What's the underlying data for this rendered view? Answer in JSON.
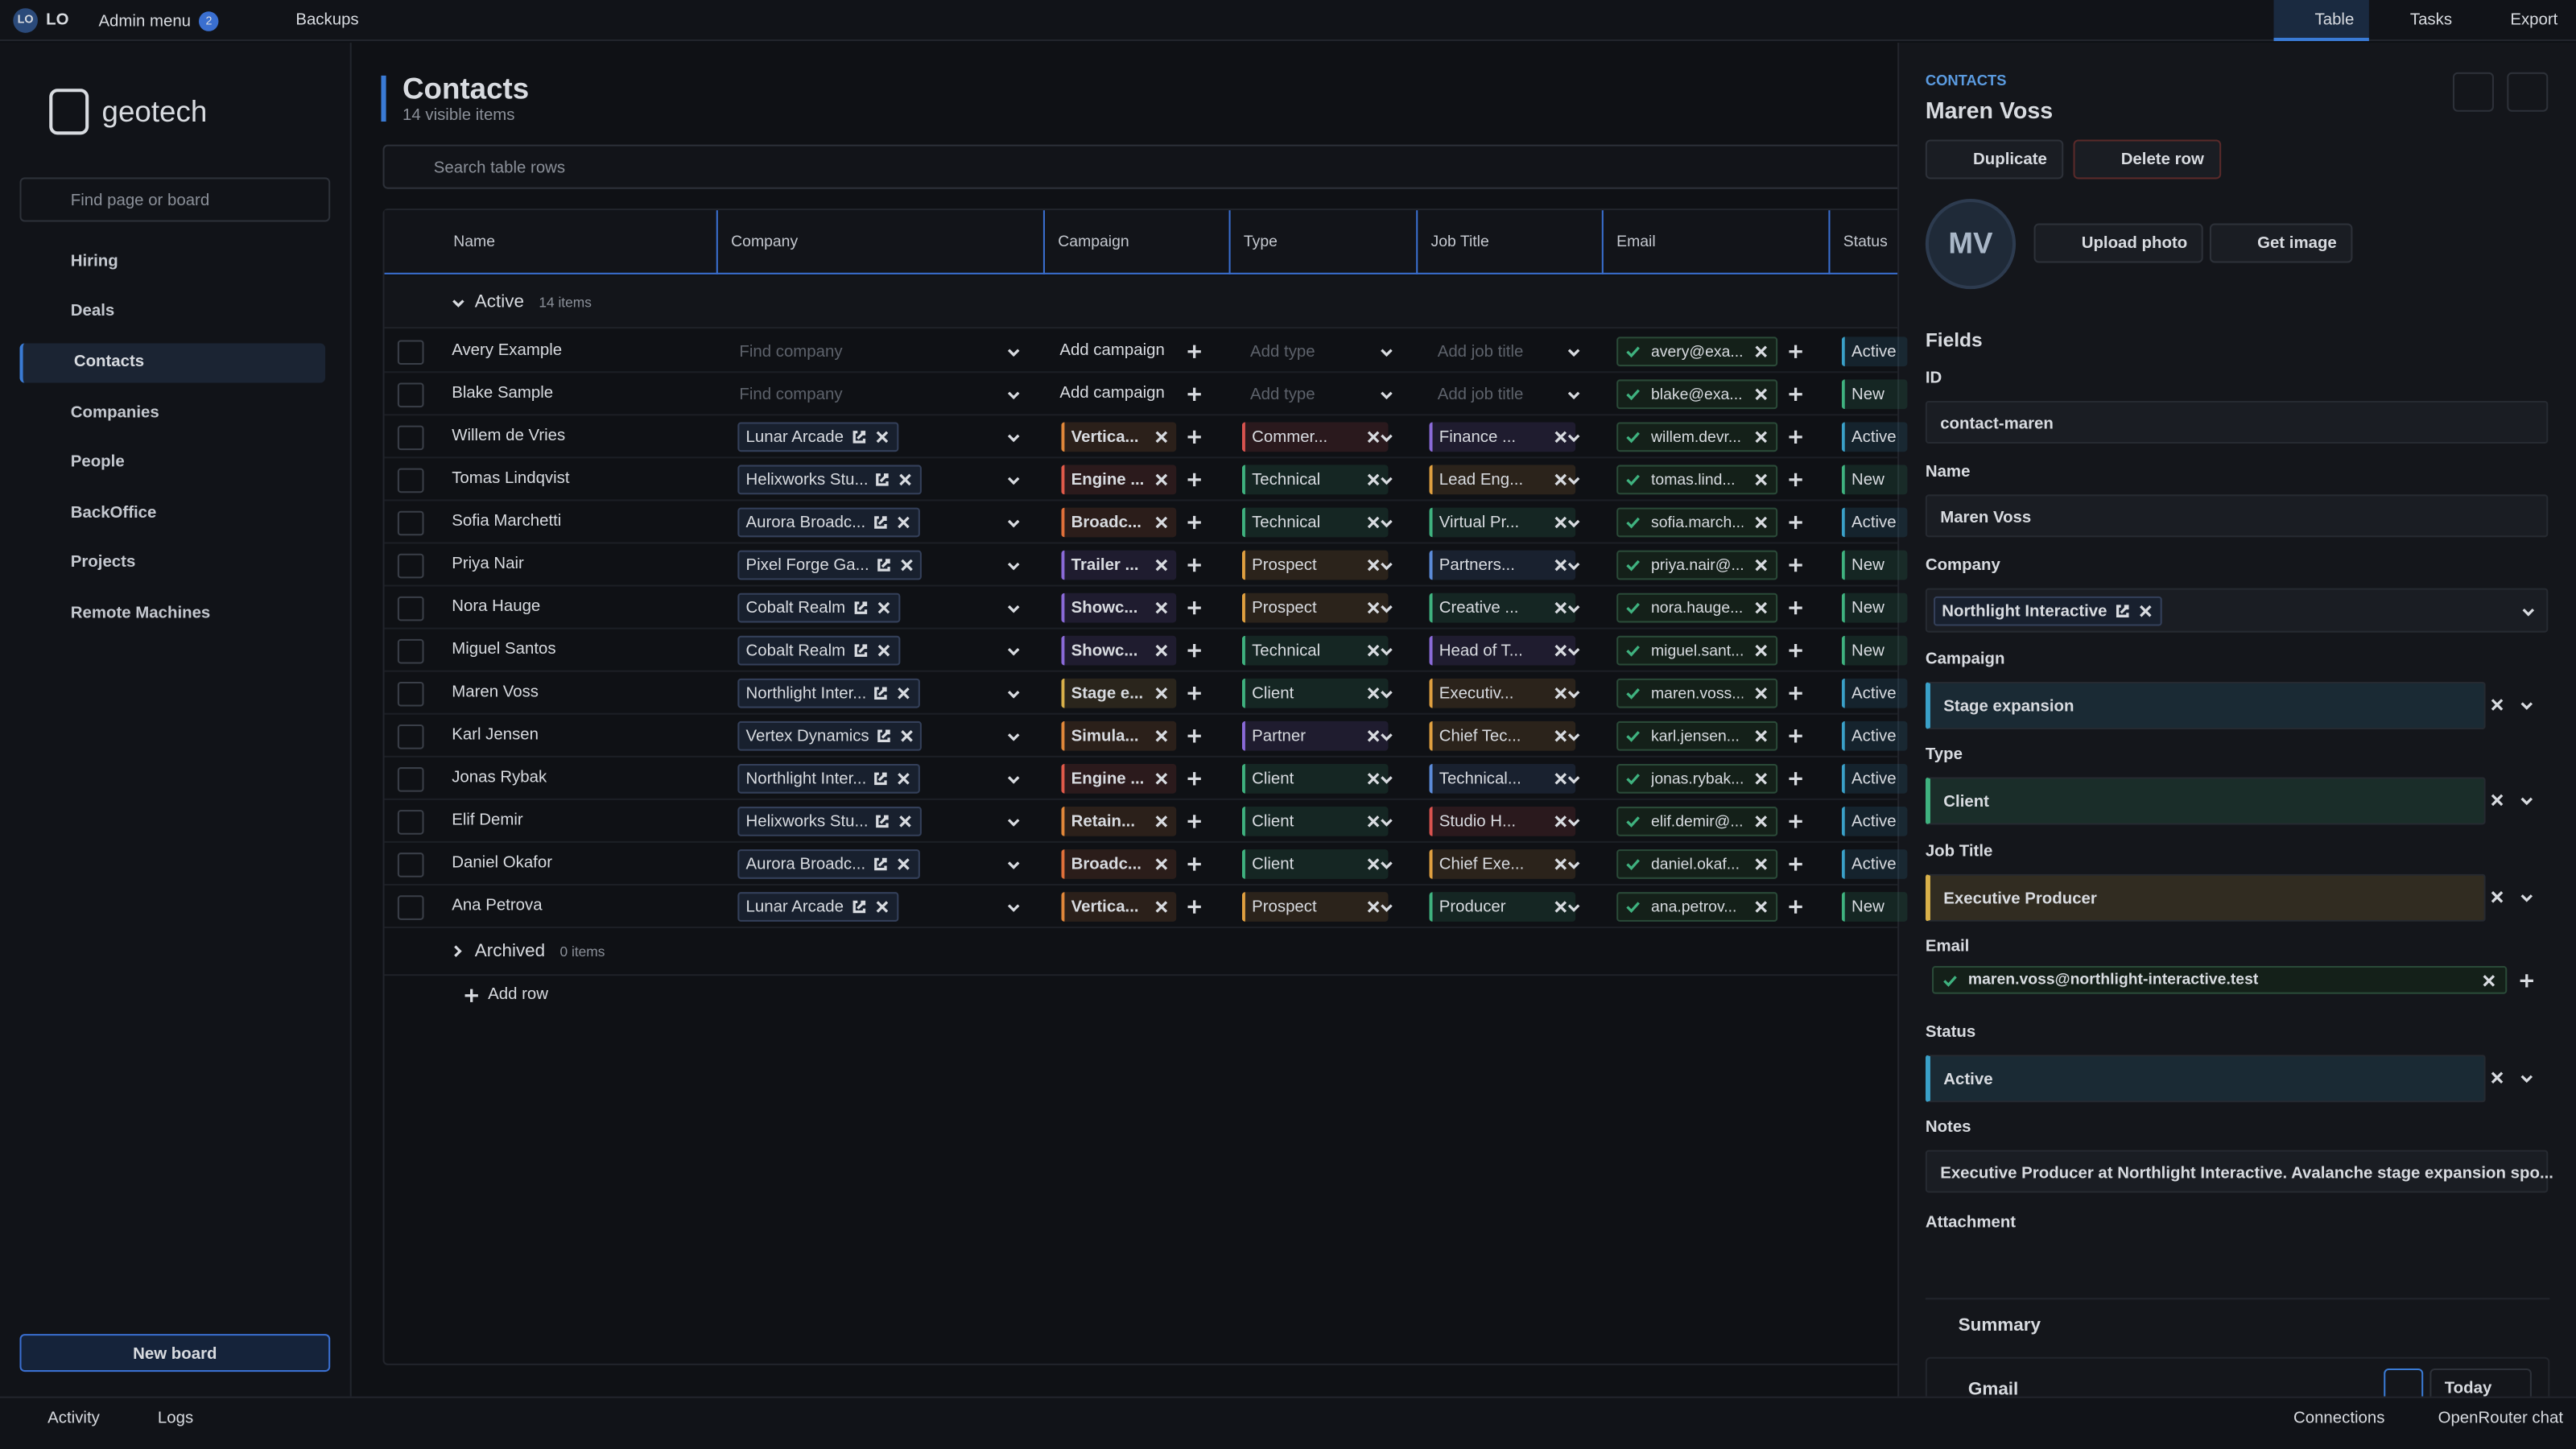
{
  "topbar": {
    "avatar": "LO",
    "user": "LO",
    "admin": "Admin menu",
    "badge": "2",
    "backups": "Backups",
    "views": [
      "Table",
      "Tasks",
      "Export"
    ]
  },
  "sidebar": {
    "logo": "geotech",
    "search": "Find page or board",
    "nav": [
      "Hiring",
      "Deals",
      "Contacts",
      "Companies",
      "People",
      "BackOffice",
      "Projects",
      "Remote Machines"
    ],
    "active": 2,
    "new_board": "New board"
  },
  "header": {
    "title": "Contacts",
    "subtitle": "14 visible items",
    "search": "Search table rows"
  },
  "table": {
    "columns": [
      "Name",
      "Company",
      "Campaign",
      "Type",
      "Job Title",
      "Email",
      "Status"
    ],
    "groups": [
      {
        "name": "Active",
        "count": "14 items"
      },
      {
        "name": "Archived",
        "count": "0 items"
      }
    ],
    "add_row": "Add row",
    "rows": [
      {
        "name": "Avery Example",
        "company": {
          "placeholder": "Find company"
        },
        "campaign": {
          "placeholder": "Add campaign"
        },
        "type": {
          "placeholder": "Add type"
        },
        "job": {
          "placeholder": "Add job title"
        },
        "email": "avery@exa...",
        "status": {
          "text": "Active",
          "color": "#3aa0c8"
        }
      },
      {
        "name": "Blake Sample",
        "company": {
          "placeholder": "Find company"
        },
        "campaign": {
          "placeholder": "Add campaign"
        },
        "type": {
          "placeholder": "Add type"
        },
        "job": {
          "placeholder": "Add job title"
        },
        "email": "blake@exa...",
        "status": {
          "text": "New",
          "color": "#3fb27f"
        }
      },
      {
        "name": "Willem de Vries",
        "company": "Lunar Arcade",
        "campaign": {
          "text": "Vertica...",
          "color": "#e0873a"
        },
        "type": {
          "text": "Commer...",
          "color": "#d9534f"
        },
        "job": {
          "text": "Finance ...",
          "color": "#8a6ad8"
        },
        "email": "willem.devr...",
        "status": {
          "text": "Active",
          "color": "#3aa0c8"
        }
      },
      {
        "name": "Tomas Lindqvist",
        "company": "Helixworks Stu...",
        "campaign": {
          "text": "Engine ...",
          "color": "#e05a4a"
        },
        "type": {
          "text": "Technical",
          "color": "#3fb27f"
        },
        "job": {
          "text": "Lead Eng...",
          "color": "#e0a040"
        },
        "email": "tomas.lind...",
        "status": {
          "text": "New",
          "color": "#3fb27f"
        }
      },
      {
        "name": "Sofia Marchetti",
        "company": "Aurora Broadc...",
        "campaign": {
          "text": "Broadc...",
          "color": "#e0703a"
        },
        "type": {
          "text": "Technical",
          "color": "#3fb27f"
        },
        "job": {
          "text": "Virtual Pr...",
          "color": "#3fb27f"
        },
        "email": "sofia.march...",
        "status": {
          "text": "Active",
          "color": "#3aa0c8"
        }
      },
      {
        "name": "Priya Nair",
        "company": "Pixel Forge Ga...",
        "campaign": {
          "text": "Trailer ...",
          "color": "#8a6ad8"
        },
        "type": {
          "text": "Prospect",
          "color": "#e0a040"
        },
        "job": {
          "text": "Partners...",
          "color": "#5b8bd9"
        },
        "email": "priya.nair@...",
        "status": {
          "text": "New",
          "color": "#3fb27f"
        }
      },
      {
        "name": "Nora Hauge",
        "company": "Cobalt Realm",
        "campaign": {
          "text": "Showc...",
          "color": "#8a6ad8"
        },
        "type": {
          "text": "Prospect",
          "color": "#e0a040"
        },
        "job": {
          "text": "Creative ...",
          "color": "#3fb27f"
        },
        "email": "nora.hauge...",
        "status": {
          "text": "New",
          "color": "#3fb27f"
        }
      },
      {
        "name": "Miguel Santos",
        "company": "Cobalt Realm",
        "campaign": {
          "text": "Showc...",
          "color": "#8a6ad8"
        },
        "type": {
          "text": "Technical",
          "color": "#3fb27f"
        },
        "job": {
          "text": "Head of T...",
          "color": "#8a6ad8"
        },
        "email": "miguel.sant...",
        "status": {
          "text": "New",
          "color": "#3fb27f"
        }
      },
      {
        "name": "Maren Voss",
        "company": "Northlight Inter...",
        "campaign": {
          "text": "Stage e...",
          "color": "#d8b04a"
        },
        "type": {
          "text": "Client",
          "color": "#3fb27f"
        },
        "job": {
          "text": "Executiv...",
          "color": "#e0a040"
        },
        "email": "maren.voss...",
        "status": {
          "text": "Active",
          "color": "#3aa0c8"
        }
      },
      {
        "name": "Karl Jensen",
        "company": "Vertex Dynamics",
        "campaign": {
          "text": "Simula...",
          "color": "#e0873a"
        },
        "type": {
          "text": "Partner",
          "color": "#8a6ad8"
        },
        "job": {
          "text": "Chief Tec...",
          "color": "#e0a040"
        },
        "email": "karl.jensen...",
        "status": {
          "text": "Active",
          "color": "#3aa0c8"
        }
      },
      {
        "name": "Jonas Rybak",
        "company": "Northlight Inter...",
        "campaign": {
          "text": "Engine ...",
          "color": "#e05a4a"
        },
        "type": {
          "text": "Client",
          "color": "#3fb27f"
        },
        "job": {
          "text": "Technical...",
          "color": "#5b8bd9"
        },
        "email": "jonas.rybak...",
        "status": {
          "text": "Active",
          "color": "#3aa0c8"
        }
      },
      {
        "name": "Elif Demir",
        "company": "Helixworks Stu...",
        "campaign": {
          "text": "Retain...",
          "color": "#e0873a"
        },
        "type": {
          "text": "Client",
          "color": "#3fb27f"
        },
        "job": {
          "text": "Studio H...",
          "color": "#d9534f"
        },
        "email": "elif.demir@...",
        "status": {
          "text": "Active",
          "color": "#3aa0c8"
        }
      },
      {
        "name": "Daniel Okafor",
        "company": "Aurora Broadc...",
        "campaign": {
          "text": "Broadc...",
          "color": "#e0703a"
        },
        "type": {
          "text": "Client",
          "color": "#3fb27f"
        },
        "job": {
          "text": "Chief Exe...",
          "color": "#e0a040"
        },
        "email": "daniel.okaf...",
        "status": {
          "text": "Active",
          "color": "#3aa0c8"
        }
      },
      {
        "name": "Ana Petrova",
        "company": "Lunar Arcade",
        "campaign": {
          "text": "Vertica...",
          "color": "#e0873a"
        },
        "type": {
          "text": "Prospect",
          "color": "#e0a040"
        },
        "job": {
          "text": "Producer",
          "color": "#3fb27f"
        },
        "email": "ana.petrov...",
        "status": {
          "text": "New",
          "color": "#3fb27f"
        }
      }
    ]
  },
  "detail": {
    "section": "CONTACTS",
    "title": "Maren Voss",
    "duplicate": "Duplicate",
    "delete": "Delete row",
    "initials": "MV",
    "upload": "Upload photo",
    "get_image": "Get image",
    "fields_heading": "Fields",
    "id_label": "ID",
    "id": "contact-maren",
    "name_label": "Name",
    "name": "Maren Voss",
    "company_label": "Company",
    "company": "Northlight Interactive",
    "campaign_label": "Campaign",
    "campaign": {
      "text": "Stage expansion",
      "color": "#3aa0c8"
    },
    "type_label": "Type",
    "type": {
      "text": "Client",
      "color": "#3fb27f"
    },
    "job_label": "Job Title",
    "job": {
      "text": "Executive Producer",
      "color": "#d8b04a"
    },
    "email_label": "Email",
    "email": "maren.voss@northlight-interactive.test",
    "status_label": "Status",
    "status": {
      "text": "Active",
      "color": "#3aa0c8"
    },
    "notes_label": "Notes",
    "notes": "Executive Producer at Northlight Interactive. Avalanche stage expansion spo...",
    "attachment_label": "Attachment",
    "summary": "Summary",
    "gmail": "Gmail",
    "today": "Today"
  },
  "footer": {
    "activity": "Activity",
    "logs": "Logs",
    "connections": "Connections",
    "chat": "OpenRouter chat"
  }
}
